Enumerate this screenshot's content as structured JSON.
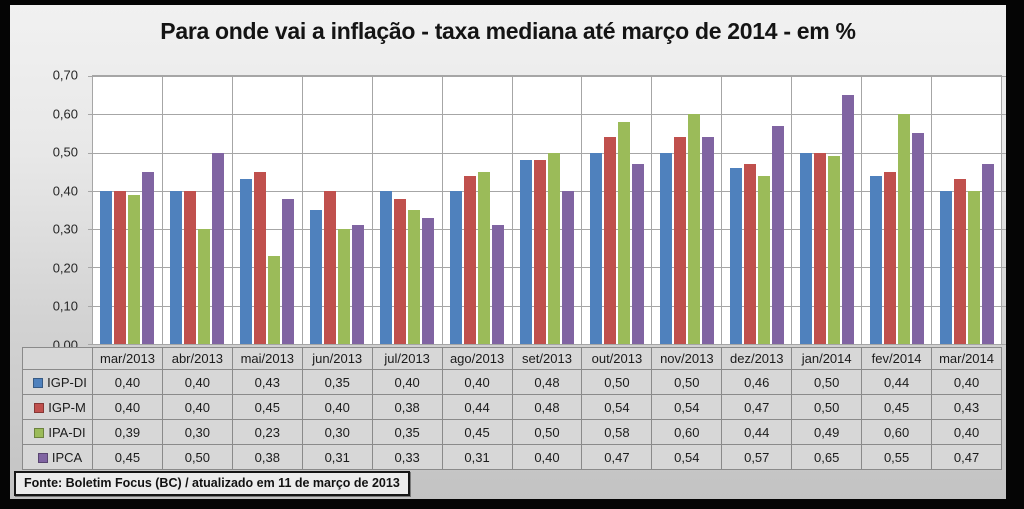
{
  "title": "Para onde vai a inflação - taxa mediana até março de 2014 - em %",
  "source_note": "Fonte: Boletim Focus (BC) / atualizado  em 11 de março de 2013",
  "chart_data": {
    "type": "bar",
    "title": "Para onde vai a inflação - taxa mediana até março de 2014 - em %",
    "categories": [
      "mar/2013",
      "abr/2013",
      "mai/2013",
      "jun/2013",
      "jul/2013",
      "ago/2013",
      "set/2013",
      "out/2013",
      "nov/2013",
      "dez/2013",
      "jan/2014",
      "fev/2014",
      "mar/2014"
    ],
    "series": [
      {
        "name": "IGP-DI",
        "color": "#4f81bd",
        "values": [
          0.4,
          0.4,
          0.43,
          0.35,
          0.4,
          0.4,
          0.48,
          0.5,
          0.5,
          0.46,
          0.5,
          0.44,
          0.4
        ]
      },
      {
        "name": "IGP-M",
        "color": "#c0504d",
        "values": [
          0.4,
          0.4,
          0.45,
          0.4,
          0.38,
          0.44,
          0.48,
          0.54,
          0.54,
          0.47,
          0.5,
          0.45,
          0.43
        ]
      },
      {
        "name": "IPA-DI",
        "color": "#9bbb59",
        "values": [
          0.39,
          0.3,
          0.23,
          0.3,
          0.35,
          0.45,
          0.5,
          0.58,
          0.6,
          0.44,
          0.49,
          0.6,
          0.4
        ]
      },
      {
        "name": "IPCA",
        "color": "#8064a2",
        "values": [
          0.45,
          0.5,
          0.38,
          0.31,
          0.33,
          0.31,
          0.4,
          0.47,
          0.54,
          0.57,
          0.65,
          0.55,
          0.47
        ]
      }
    ],
    "ylim": [
      0,
      0.7
    ],
    "ytick_step": 0.1,
    "ytick_labels_top_to_bottom": [
      "0,70",
      "0,60",
      "0,50",
      "0,40",
      "0,30",
      "0,20",
      "0,10",
      "0,00"
    ],
    "decimal_separator": ",",
    "grid": true,
    "legend_position": "table-first-column",
    "data_table_shown": true
  }
}
